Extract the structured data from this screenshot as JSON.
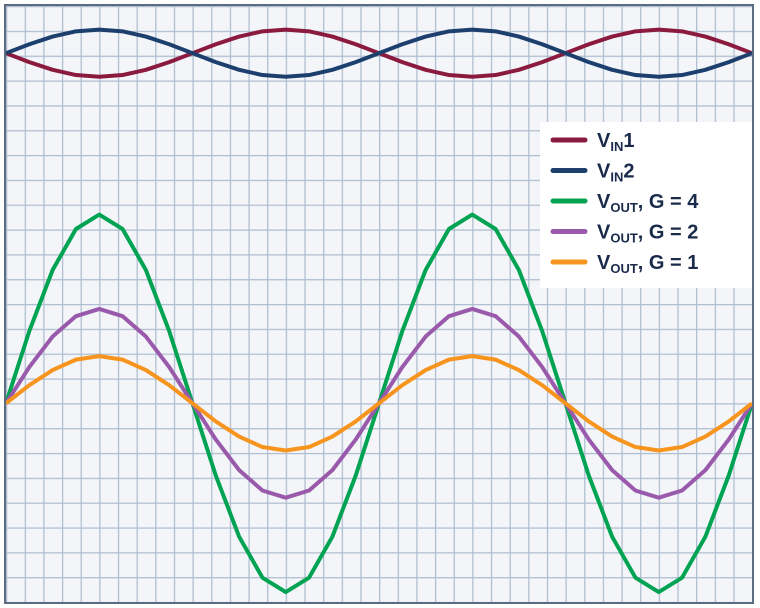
{
  "chart_data": {
    "type": "line",
    "x": [
      0,
      0.25,
      0.5,
      0.75,
      1,
      1.25,
      1.5,
      1.75,
      2,
      2.25,
      2.5,
      2.75,
      3,
      3.25,
      3.5,
      3.75,
      4,
      4.25,
      4.5,
      4.75,
      5,
      5.25,
      5.5,
      5.75,
      6,
      6.25,
      6.5,
      6.75,
      7,
      7.25,
      7.5,
      7.75,
      8
    ],
    "xlim": [
      0,
      8
    ],
    "ylim": [
      0,
      24
    ],
    "series": [
      {
        "name": [
          "V",
          "IN",
          "1"
        ],
        "color": "#8b1a3f",
        "values": [
          22.1,
          21.74,
          21.43,
          21.22,
          21.15,
          21.22,
          21.43,
          21.74,
          22.1,
          22.46,
          22.77,
          22.98,
          23.05,
          22.98,
          22.77,
          22.46,
          22.1,
          21.74,
          21.43,
          21.22,
          21.15,
          21.22,
          21.43,
          21.74,
          22.1,
          22.46,
          22.77,
          22.98,
          23.05,
          22.98,
          22.77,
          22.46,
          22.1
        ]
      },
      {
        "name": [
          "V",
          "IN",
          "2"
        ],
        "color": "#1c3f6e",
        "values": [
          22.1,
          22.46,
          22.77,
          22.98,
          23.05,
          22.98,
          22.77,
          22.46,
          22.1,
          21.74,
          21.43,
          21.22,
          21.15,
          21.22,
          21.43,
          21.74,
          22.1,
          22.46,
          22.77,
          22.98,
          23.05,
          22.98,
          22.77,
          22.46,
          22.1,
          21.74,
          21.43,
          21.22,
          21.15,
          21.22,
          21.43,
          21.74,
          22.1
        ]
      },
      {
        "name": [
          "V",
          "OUT",
          ", G = 4"
        ],
        "color": "#00a352",
        "values": [
          8,
          10.91,
          13.37,
          15.02,
          15.6,
          15.02,
          13.37,
          10.91,
          8,
          5.09,
          2.63,
          0.98,
          0.4,
          0.98,
          2.63,
          5.09,
          8,
          10.91,
          13.37,
          15.02,
          15.6,
          15.02,
          13.37,
          10.91,
          8,
          5.09,
          2.63,
          0.98,
          0.4,
          0.98,
          2.63,
          5.09,
          8
        ]
      },
      {
        "name": [
          "V",
          "OUT",
          ", G = 2"
        ],
        "color": "#9a5aab",
        "values": [
          8,
          9.46,
          10.69,
          11.51,
          11.8,
          11.51,
          10.69,
          9.46,
          8,
          6.54,
          5.31,
          4.49,
          4.2,
          4.49,
          5.31,
          6.54,
          8,
          9.46,
          10.69,
          11.51,
          11.8,
          11.51,
          10.69,
          9.46,
          8,
          6.54,
          5.31,
          4.49,
          4.2,
          4.49,
          5.31,
          6.54,
          8
        ]
      },
      {
        "name": [
          "V",
          "OUT",
          ", G = 1"
        ],
        "color": "#f7941d",
        "values": [
          8,
          8.73,
          9.34,
          9.76,
          9.9,
          9.76,
          9.34,
          8.73,
          8,
          7.27,
          6.66,
          6.24,
          6.1,
          6.24,
          6.66,
          7.27,
          8,
          8.73,
          9.34,
          9.76,
          9.9,
          9.76,
          9.34,
          8.73,
          8,
          7.27,
          6.66,
          6.24,
          6.1,
          6.24,
          6.66,
          7.27,
          8
        ]
      }
    ],
    "legend": "right"
  }
}
